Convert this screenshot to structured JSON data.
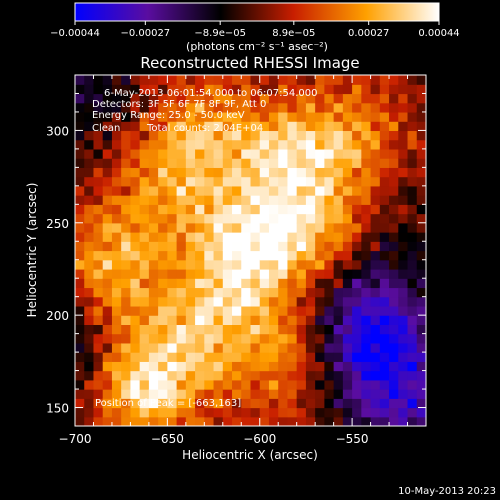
{
  "chart_data": {
    "type": "heatmap",
    "title": "Reconstructed RHESSI Image",
    "xlabel": "Heliocentric X (arcsec)",
    "ylabel": "Heliocentric Y (arcsec)",
    "xlim": [
      -700,
      -510
    ],
    "ylim": [
      140,
      330
    ],
    "x_ticks": [
      -700,
      -650,
      -600,
      -550
    ],
    "x_tick_labels": [
      "−700",
      "−650",
      "−600",
      "−550"
    ],
    "y_ticks": [
      150,
      200,
      250,
      300
    ],
    "y_tick_labels": [
      "150",
      "200",
      "250",
      "300"
    ],
    "colorbar": {
      "range": [
        -0.00044,
        0.00044
      ],
      "ticks": [
        -0.00044,
        -0.00027,
        -8.9e-05,
        8.9e-05,
        0.00027,
        0.00044
      ],
      "tick_labels": [
        "−0.00044",
        "−0.00027",
        "−8.9e−05",
        "8.9e−05",
        "0.00027",
        "0.00044"
      ],
      "unit_label": "(photons cm⁻² s⁻¹ asec⁻²)",
      "colors": [
        "#0000ff",
        "#5a0da0",
        "#000000",
        "#c81e00",
        "#ffa000",
        "#ffffff"
      ]
    },
    "peak": [
      -663,
      163
    ],
    "hotspots": [
      {
        "x": -662,
        "y": 165,
        "v": 0.00044
      },
      {
        "x": -603,
        "y": 238,
        "v": 0.0004
      },
      {
        "x": -580,
        "y": 285,
        "v": 0.00032
      },
      {
        "x": -680,
        "y": 225,
        "v": 0.00028
      },
      {
        "x": -630,
        "y": 300,
        "v": 0.00024
      },
      {
        "x": -560,
        "y": 245,
        "v": 0.00022
      },
      {
        "x": -650,
        "y": 270,
        "v": 0.0002
      },
      {
        "x": -625,
        "y": 200,
        "v": 0.00024
      },
      {
        "x": -590,
        "y": 175,
        "v": 0.0002
      },
      {
        "x": -545,
        "y": 300,
        "v": 0.00016
      }
    ],
    "coldspots": [
      {
        "x": -538,
        "y": 188,
        "v": -0.0004
      },
      {
        "x": -700,
        "y": 180,
        "v": -0.0002
      },
      {
        "x": -523,
        "y": 150,
        "v": -0.00024
      },
      {
        "x": -695,
        "y": 320,
        "v": -0.00014
      },
      {
        "x": -540,
        "y": 235,
        "v": -0.00016
      }
    ]
  },
  "annotations": {
    "time_range": "6-May-2013 06:01:54.000 to 06:07:54.000",
    "detectors": "Detectors: 3F 5F 6F 7F 8F 9F, Att 0",
    "energy": "Energy Range: 25.0 - 50.0 keV",
    "method": "Clean",
    "total_counts": "Total counts: 2.04E+04",
    "peak_text": "Position of Peak = [-663,163]"
  },
  "footer": {
    "date": "10-May-2013 20:23"
  }
}
